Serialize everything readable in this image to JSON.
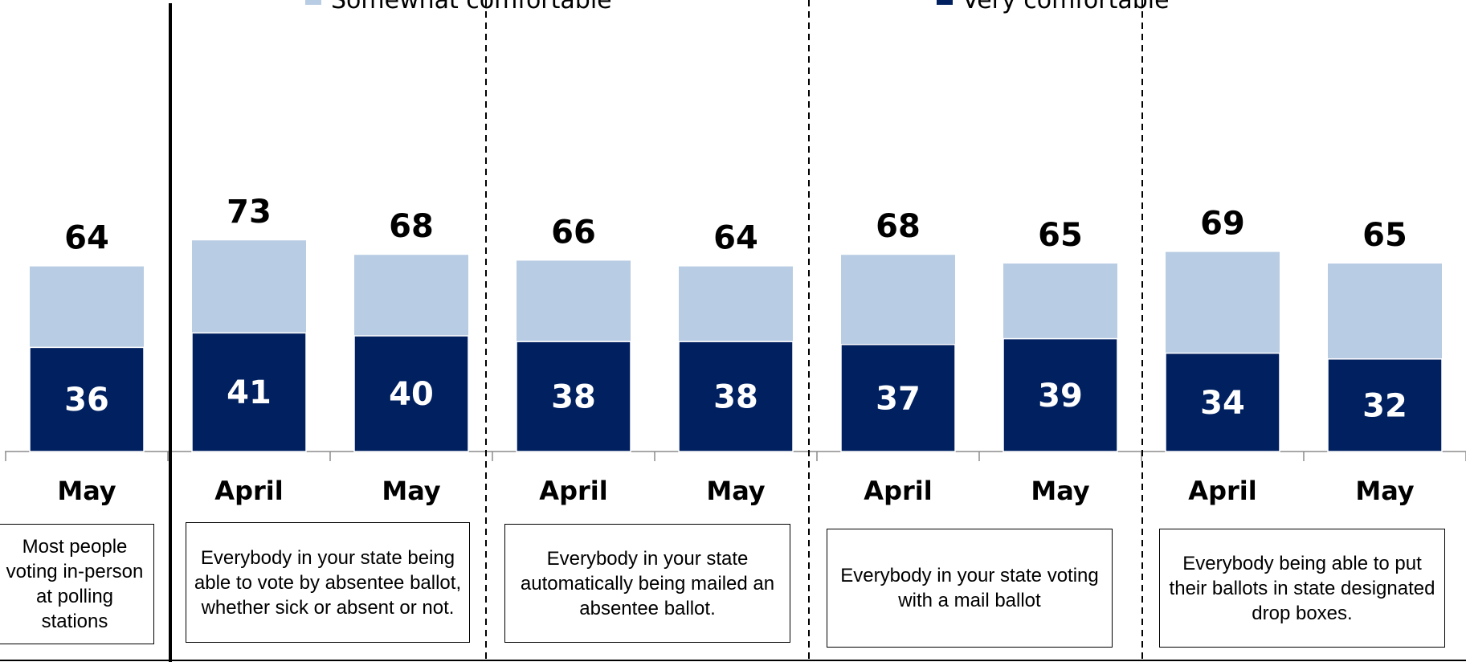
{
  "colors": {
    "somewhat": "#b8cce4",
    "very": "#002060"
  },
  "chart_data": {
    "type": "bar",
    "stacked": true,
    "legend": [
      {
        "name": "Somewhat comfortable",
        "color": "#b8cce4"
      },
      {
        "name": "Very comfortable",
        "color": "#002060"
      }
    ],
    "categories": [
      "May",
      "April",
      "May",
      "April",
      "May",
      "April",
      "May",
      "April",
      "May"
    ],
    "series": [
      {
        "name": "Very comfortable",
        "values": [
          36,
          41,
          40,
          38,
          38,
          37,
          39,
          34,
          32
        ]
      },
      {
        "name": "Somewhat comfortable",
        "values": [
          28,
          32,
          28,
          28,
          26,
          31,
          26,
          35,
          33
        ]
      }
    ],
    "totals": [
      64,
      73,
      68,
      66,
      64,
      68,
      65,
      69,
      65
    ],
    "groups": [
      {
        "label": "Most people voting in-person at polling stations",
        "bars": [
          0
        ]
      },
      {
        "label": "Everybody in your state being able to vote by absentee ballot, whether sick or absent or not.",
        "bars": [
          1,
          2
        ]
      },
      {
        "label": "Everybody in your state automatically being mailed an absentee ballot.",
        "bars": [
          3,
          4
        ]
      },
      {
        "label": "Everybody in your state voting with a mail ballot",
        "bars": [
          5,
          6
        ]
      },
      {
        "label": "Everybody being able to put their ballots in state designated drop boxes.",
        "bars": [
          7,
          8
        ]
      }
    ],
    "ylim": [
      0,
      100
    ]
  }
}
